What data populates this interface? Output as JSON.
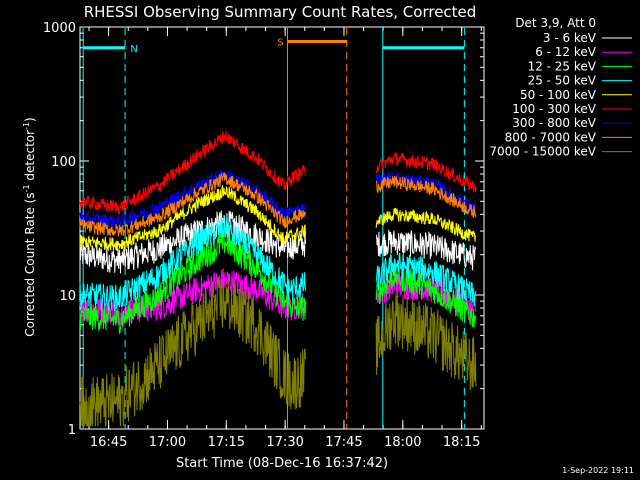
{
  "chart_data": {
    "type": "line",
    "title": "RHESSI Observing Summary Count Rates, Corrected",
    "xlabel": "Start Time (08-Dec-16 16:37:42)",
    "ylabel_main": "Corrected Count Rate (s",
    "ylabel_sup1": "-1",
    "ylabel_mid": " detector",
    "ylabel_sup2": "-1",
    "ylabel_end": ")",
    "yscale": "log",
    "ylim": [
      1,
      1000
    ],
    "xlim_minutes": [
      0,
      103
    ],
    "x_ticks": [
      {
        "label": "16:45",
        "t": 7.3
      },
      {
        "label": "17:00",
        "t": 22.3
      },
      {
        "label": "17:15",
        "t": 37.3
      },
      {
        "label": "17:30",
        "t": 52.3
      },
      {
        "label": "17:45",
        "t": 67.3
      },
      {
        "label": "18:00",
        "t": 82.3
      },
      {
        "label": "18:15",
        "t": 97.3
      }
    ],
    "y_ticks": [
      {
        "label": "1",
        "v": 1
      },
      {
        "label": "10",
        "v": 10
      },
      {
        "label": "100",
        "v": 100
      },
      {
        "label": "1000",
        "v": 1000
      }
    ],
    "legend_title": "Det 3,9, Att 0",
    "legend_position": "top-right, outside plot",
    "segments": [
      [
        0,
        57.5
      ],
      [
        75.5,
        101
      ]
    ],
    "series": [
      {
        "name": "3 - 6 keV",
        "color": "#ffffff",
        "x": [
          0,
          10,
          20,
          30,
          37,
          45,
          52,
          54,
          57.5,
          75.5,
          80,
          90,
          100
        ],
        "values": [
          20,
          18,
          22,
          30,
          35,
          28,
          22,
          23,
          24,
          24,
          25,
          23,
          19
        ]
      },
      {
        "name": "6 - 12 keV",
        "color": "#ff00ff",
        "x": [
          0,
          10,
          20,
          30,
          37,
          45,
          52,
          54,
          57.5,
          75.5,
          80,
          90,
          100
        ],
        "values": [
          8,
          7.5,
          8,
          11,
          13,
          11,
          8,
          8,
          8.5,
          10,
          12,
          11,
          8
        ]
      },
      {
        "name": "12 - 25 keV",
        "color": "#00ff00",
        "x": [
          0,
          10,
          20,
          30,
          37,
          45,
          52,
          54,
          57.5,
          75.5,
          80,
          90,
          100
        ],
        "values": [
          7,
          6.5,
          10,
          18,
          25,
          16,
          9,
          8,
          8,
          10,
          14,
          11,
          7
        ]
      },
      {
        "name": "25 - 50 keV",
        "color": "#00ffff",
        "x": [
          0,
          10,
          20,
          30,
          37,
          45,
          52,
          54,
          57.5,
          75.5,
          80,
          90,
          100
        ],
        "values": [
          10,
          9.5,
          14,
          25,
          32,
          20,
          12,
          11,
          12,
          13,
          17,
          15,
          10
        ]
      },
      {
        "name": "50 - 100 keV",
        "color": "#ffff00",
        "x": [
          0,
          10,
          20,
          30,
          37,
          45,
          52,
          54,
          57.5,
          75.5,
          80,
          90,
          100
        ],
        "values": [
          25,
          24,
          30,
          48,
          60,
          42,
          26,
          28,
          30,
          35,
          40,
          37,
          27
        ]
      },
      {
        "name": "100 - 300 keV",
        "color": "#ff0000",
        "x": [
          0,
          10,
          20,
          30,
          37,
          45,
          52,
          54,
          57.5,
          75.5,
          80,
          90,
          100
        ],
        "values": [
          50,
          45,
          65,
          110,
          155,
          105,
          65,
          75,
          85,
          90,
          105,
          95,
          65
        ]
      },
      {
        "name": "300 - 800 keV",
        "color": "#0000ff",
        "x": [
          0,
          10,
          20,
          30,
          37,
          45,
          52,
          54,
          57.5,
          75.5,
          80,
          90,
          100
        ],
        "values": [
          38,
          35,
          45,
          65,
          80,
          60,
          40,
          42,
          45,
          72,
          75,
          68,
          45
        ]
      },
      {
        "name": "800 - 7000 keV",
        "color": "#ff8000",
        "x": [
          0,
          10,
          20,
          30,
          37,
          45,
          52,
          54,
          57.5,
          75.5,
          80,
          90,
          100
        ],
        "values": [
          33,
          30,
          38,
          58,
          75,
          55,
          35,
          38,
          40,
          65,
          70,
          62,
          42
        ]
      },
      {
        "name": "7000 - 15000 keV",
        "color": "#808000",
        "x": [
          0,
          10,
          20,
          30,
          37,
          45,
          52,
          54,
          57.5,
          75.5,
          80,
          90,
          100
        ],
        "values": [
          1.5,
          1.6,
          3,
          6,
          9,
          6,
          2.5,
          2.2,
          2.5,
          4,
          7,
          5,
          3
        ]
      }
    ],
    "markers": [
      {
        "label": "N",
        "color": "#00ffff",
        "t_start": 0.8,
        "t_end": 11.5,
        "v": 700
      },
      {
        "label": "S",
        "color": "#ff8000",
        "t_start": 52.9,
        "t_end": 68.0,
        "v": 780
      },
      {
        "label": "",
        "color": "#00ffff",
        "t_start": 77.2,
        "t_end": 98.0,
        "v": 700
      }
    ],
    "vlines": [
      {
        "t": 0.8,
        "color": "#00ffff",
        "style": "solid"
      },
      {
        "t": 11.5,
        "color": "#00ffff",
        "style": "dashed"
      },
      {
        "t": 52.9,
        "color": "#ff8000",
        "style": "solid"
      },
      {
        "t": 68.0,
        "color": "#ff8000",
        "style": "dashed"
      },
      {
        "t": 77.2,
        "color": "#00ffff",
        "style": "solid"
      },
      {
        "t": 98.0,
        "color": "#00ffff",
        "style": "dashed"
      }
    ],
    "footer_timestamp": "1-Sep-2022 19:11"
  }
}
